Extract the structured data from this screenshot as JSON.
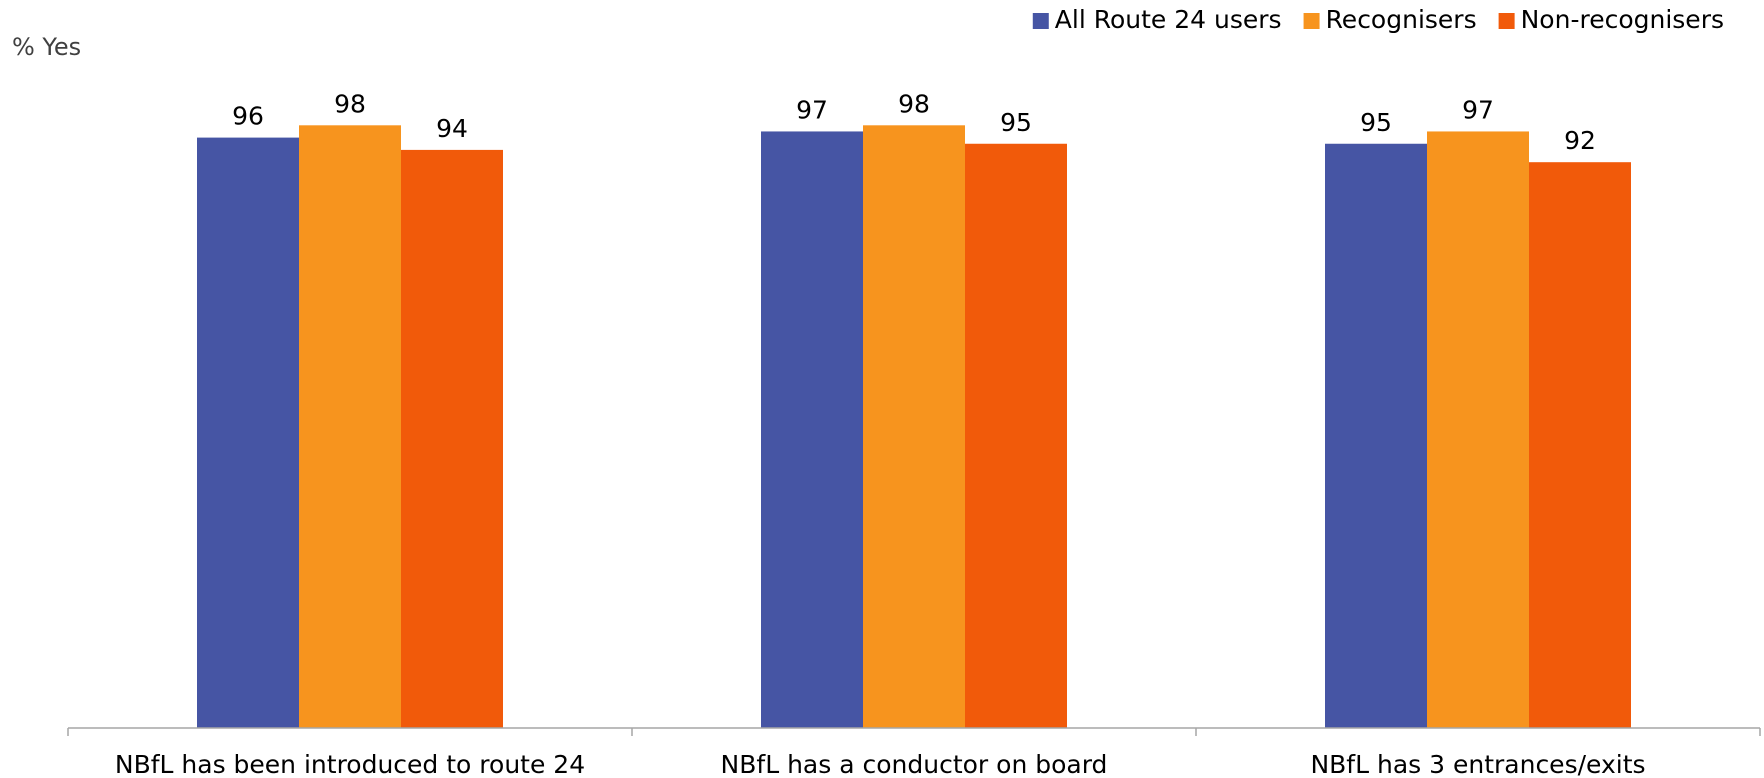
{
  "chart_data": {
    "type": "bar",
    "ylabel": "% Yes",
    "xlabel": "",
    "ylim": [
      0,
      100
    ],
    "grid": false,
    "legend_position": "top-right",
    "categories": [
      "NBfL has been introduced to route 24",
      "NBfL has a conductor on board",
      "NBfL has 3 entrances/exits"
    ],
    "series": [
      {
        "name": "All Route 24 users",
        "color": "#4655A4",
        "values": [
          96,
          97,
          95
        ]
      },
      {
        "name": "Recognisers",
        "color": "#F7941E",
        "values": [
          98,
          98,
          97
        ]
      },
      {
        "name": "Non-recognisers",
        "color": "#F15A0A",
        "values": [
          94,
          95,
          92
        ]
      }
    ]
  }
}
